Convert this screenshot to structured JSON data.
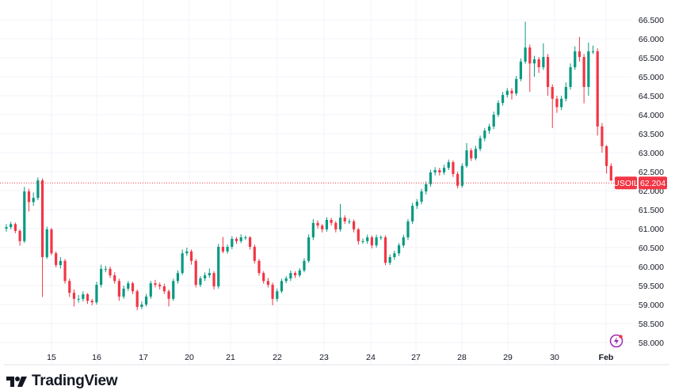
{
  "chart_data": {
    "type": "candlestick",
    "symbol": "USOIL",
    "last_price": "62.204",
    "ylim": [
      57.8,
      66.7
    ],
    "y_ticks": [
      "58.000",
      "58.500",
      "59.000",
      "59.500",
      "60.000",
      "60.500",
      "61.000",
      "61.500",
      "62.000",
      "62.500",
      "63.000",
      "63.500",
      "64.000",
      "64.500",
      "65.000",
      "65.500",
      "66.000",
      "66.500"
    ],
    "x_ticks": [
      "15",
      "16",
      "17",
      "20",
      "21",
      "22",
      "23",
      "24",
      "27",
      "28",
      "29",
      "30",
      "Feb"
    ],
    "grid": true,
    "colors": {
      "up": "#089981",
      "down": "#F23645",
      "grid": "#F0F3FA",
      "price_line": "#F23645"
    },
    "ohlc": [
      [
        61.0,
        61.12,
        60.92,
        61.04
      ],
      [
        61.04,
        61.18,
        60.98,
        61.12
      ],
      [
        61.12,
        61.16,
        60.88,
        60.94
      ],
      [
        60.94,
        60.98,
        60.55,
        60.67
      ],
      [
        60.67,
        62.1,
        60.62,
        61.98
      ],
      [
        61.98,
        62.05,
        61.45,
        61.7
      ],
      [
        61.7,
        61.95,
        61.6,
        61.81
      ],
      [
        61.81,
        62.35,
        61.75,
        62.27
      ],
      [
        62.27,
        62.32,
        59.2,
        60.25
      ],
      [
        60.25,
        61.05,
        60.2,
        60.98
      ],
      [
        60.98,
        61.02,
        60.3,
        60.35
      ],
      [
        60.35,
        60.4,
        59.98,
        60.04
      ],
      [
        60.04,
        60.25,
        59.95,
        60.15
      ],
      [
        60.15,
        60.2,
        59.55,
        59.62
      ],
      [
        59.62,
        59.68,
        59.2,
        59.31
      ],
      [
        59.31,
        59.4,
        58.95,
        59.15
      ],
      [
        59.15,
        59.25,
        59.05,
        59.15
      ],
      [
        59.15,
        59.35,
        59.08,
        59.27
      ],
      [
        59.27,
        59.3,
        59.02,
        59.1
      ],
      [
        59.1,
        59.15,
        58.98,
        59.06
      ],
      [
        59.06,
        59.6,
        59.0,
        59.52
      ],
      [
        59.52,
        60.05,
        59.45,
        59.94
      ],
      [
        59.94,
        60.02,
        59.85,
        59.94
      ],
      [
        59.94,
        60.0,
        59.7,
        59.77
      ],
      [
        59.77,
        59.85,
        59.55,
        59.62
      ],
      [
        59.62,
        59.68,
        59.1,
        59.21
      ],
      [
        59.21,
        59.5,
        59.15,
        59.42
      ],
      [
        59.42,
        59.62,
        59.36,
        59.56
      ],
      [
        59.56,
        59.6,
        59.28,
        59.35
      ],
      [
        59.35,
        59.4,
        58.85,
        58.94
      ],
      [
        58.94,
        59.08,
        58.88,
        59.0
      ],
      [
        59.0,
        59.28,
        58.95,
        59.21
      ],
      [
        59.21,
        59.62,
        59.15,
        59.56
      ],
      [
        59.56,
        59.65,
        59.45,
        59.52
      ],
      [
        59.52,
        59.58,
        59.4,
        59.48
      ],
      [
        59.48,
        59.55,
        59.28,
        59.35
      ],
      [
        59.35,
        59.4,
        58.95,
        59.15
      ],
      [
        59.15,
        59.68,
        59.1,
        59.62
      ],
      [
        59.62,
        59.9,
        59.55,
        59.83
      ],
      [
        59.83,
        60.45,
        59.78,
        60.35
      ],
      [
        60.35,
        60.5,
        60.28,
        60.4
      ],
      [
        60.4,
        60.45,
        60.05,
        60.15
      ],
      [
        60.15,
        60.2,
        59.45,
        59.52
      ],
      [
        59.52,
        59.75,
        59.46,
        59.69
      ],
      [
        59.69,
        59.85,
        59.62,
        59.77
      ],
      [
        59.77,
        59.95,
        59.7,
        59.83
      ],
      [
        59.83,
        59.88,
        59.4,
        59.48
      ],
      [
        59.48,
        60.6,
        59.42,
        60.52
      ],
      [
        60.52,
        60.78,
        60.35,
        60.4
      ],
      [
        60.4,
        60.58,
        60.34,
        60.52
      ],
      [
        60.52,
        60.8,
        60.46,
        60.73
      ],
      [
        60.73,
        60.78,
        60.6,
        60.67
      ],
      [
        60.67,
        60.85,
        60.62,
        60.77
      ],
      [
        60.77,
        60.82,
        60.7,
        60.77
      ],
      [
        60.77,
        60.8,
        60.45,
        60.52
      ],
      [
        60.52,
        60.58,
        60.08,
        60.15
      ],
      [
        60.15,
        60.2,
        59.76,
        59.83
      ],
      [
        59.83,
        59.88,
        59.55,
        59.62
      ],
      [
        59.62,
        59.7,
        59.45,
        59.52
      ],
      [
        59.52,
        59.58,
        58.98,
        59.15
      ],
      [
        59.15,
        59.42,
        59.08,
        59.35
      ],
      [
        59.35,
        59.68,
        59.3,
        59.62
      ],
      [
        59.62,
        59.75,
        59.56,
        59.69
      ],
      [
        59.69,
        59.9,
        59.62,
        59.83
      ],
      [
        59.83,
        59.88,
        59.7,
        59.77
      ],
      [
        59.77,
        59.96,
        59.72,
        59.9
      ],
      [
        59.9,
        60.22,
        59.85,
        60.15
      ],
      [
        60.15,
        60.85,
        60.1,
        60.77
      ],
      [
        60.77,
        61.25,
        60.7,
        61.15
      ],
      [
        61.15,
        61.22,
        61.0,
        61.08
      ],
      [
        61.08,
        61.12,
        60.9,
        60.98
      ],
      [
        60.98,
        61.3,
        60.92,
        61.23
      ],
      [
        61.23,
        61.28,
        61.08,
        61.15
      ],
      [
        61.15,
        61.2,
        60.9,
        60.98
      ],
      [
        60.98,
        61.65,
        60.92,
        61.29
      ],
      [
        61.29,
        61.35,
        61.12,
        61.19
      ],
      [
        61.19,
        61.26,
        61.12,
        61.19
      ],
      [
        61.19,
        61.24,
        60.9,
        60.98
      ],
      [
        60.98,
        61.02,
        60.58,
        60.67
      ],
      [
        60.67,
        60.74,
        60.6,
        60.67
      ],
      [
        60.67,
        60.84,
        60.6,
        60.77
      ],
      [
        60.77,
        60.82,
        60.48,
        60.56
      ],
      [
        60.56,
        60.84,
        60.5,
        60.77
      ],
      [
        60.77,
        60.82,
        60.7,
        60.77
      ],
      [
        60.77,
        60.82,
        60.04,
        60.1
      ],
      [
        60.1,
        60.32,
        60.04,
        60.25
      ],
      [
        60.25,
        60.42,
        60.18,
        60.35
      ],
      [
        60.35,
        60.62,
        60.28,
        60.56
      ],
      [
        60.56,
        60.84,
        60.5,
        60.77
      ],
      [
        60.77,
        61.25,
        60.7,
        61.19
      ],
      [
        61.19,
        61.68,
        61.12,
        61.6
      ],
      [
        61.6,
        61.78,
        61.52,
        61.71
      ],
      [
        61.71,
        62.05,
        61.64,
        61.98
      ],
      [
        61.98,
        62.24,
        61.9,
        62.17
      ],
      [
        62.17,
        62.55,
        62.1,
        62.48
      ],
      [
        62.48,
        62.62,
        62.4,
        62.54
      ],
      [
        62.54,
        62.6,
        62.4,
        62.48
      ],
      [
        62.48,
        62.68,
        62.42,
        62.6
      ],
      [
        62.6,
        62.82,
        62.54,
        62.75
      ],
      [
        62.75,
        62.8,
        62.36,
        62.44
      ],
      [
        62.44,
        62.5,
        62.06,
        62.13
      ],
      [
        62.13,
        62.72,
        62.08,
        62.65
      ],
      [
        62.65,
        63.25,
        62.6,
        63.06
      ],
      [
        63.06,
        63.12,
        62.78,
        62.85
      ],
      [
        62.85,
        63.18,
        62.8,
        63.1
      ],
      [
        63.1,
        63.45,
        63.04,
        63.38
      ],
      [
        63.38,
        63.65,
        63.3,
        63.58
      ],
      [
        63.58,
        63.76,
        63.5,
        63.69
      ],
      [
        63.69,
        64.08,
        63.62,
        64.0
      ],
      [
        64.0,
        64.38,
        63.94,
        64.31
      ],
      [
        64.31,
        64.6,
        64.24,
        64.52
      ],
      [
        64.52,
        64.7,
        64.45,
        64.63
      ],
      [
        64.63,
        64.7,
        64.4,
        64.56
      ],
      [
        64.56,
        65.02,
        64.5,
        64.94
      ],
      [
        64.94,
        65.48,
        64.88,
        65.4
      ],
      [
        65.4,
        66.45,
        65.34,
        65.77
      ],
      [
        65.77,
        65.85,
        64.6,
        65.35
      ],
      [
        65.35,
        65.55,
        65.0,
        65.46
      ],
      [
        65.46,
        65.52,
        65.1,
        65.25
      ],
      [
        65.25,
        65.88,
        65.18,
        65.52
      ],
      [
        65.52,
        65.6,
        64.5,
        64.73
      ],
      [
        64.73,
        64.8,
        63.65,
        64.42
      ],
      [
        64.42,
        64.5,
        64.05,
        64.2
      ],
      [
        64.2,
        64.5,
        64.12,
        64.42
      ],
      [
        64.42,
        64.85,
        64.35,
        64.73
      ],
      [
        64.73,
        65.35,
        64.66,
        65.25
      ],
      [
        65.25,
        65.8,
        65.18,
        65.67
      ],
      [
        65.67,
        66.05,
        65.4,
        65.52
      ],
      [
        65.52,
        65.6,
        64.3,
        64.73
      ],
      [
        64.73,
        65.9,
        64.5,
        65.67
      ],
      [
        65.67,
        65.82,
        65.6,
        65.67
      ],
      [
        65.67,
        65.75,
        63.45,
        63.69
      ],
      [
        63.69,
        63.78,
        63.0,
        63.17
      ],
      [
        63.17,
        63.2,
        62.45,
        62.65
      ],
      [
        62.65,
        62.72,
        62.25,
        62.27
      ],
      [
        62.27,
        62.32,
        62.15,
        62.204
      ]
    ]
  },
  "footer": {
    "brand": "TradingView"
  },
  "icons": {
    "alert": "lightning-icon"
  }
}
